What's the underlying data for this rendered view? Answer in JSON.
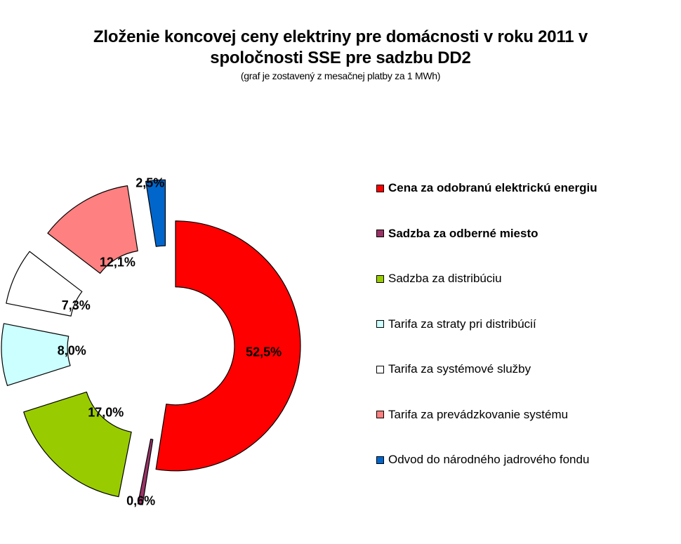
{
  "chart_data": {
    "type": "pie",
    "variant": "exploded-doughnut",
    "title": "Zloženie koncovej ceny elektriny pre domácnosti v roku 2011 v spoločnosti SSE pre sadzbu DD2",
    "subtitle": "(graf je zostavený z mesačnej platby za 1 MWh)",
    "legend_position": "right",
    "slices": [
      {
        "label": "Cena za odobranú  elektrickú energiu",
        "value": 52.5,
        "value_label": "52,5%",
        "color": "#ff0000",
        "legend_bold": true
      },
      {
        "label": "Sadzba za odberné miesto",
        "value": 0.6,
        "value_label": "0,6%",
        "color": "#993366",
        "legend_bold": true
      },
      {
        "label": "Sadzba za distribúciu",
        "value": 17.0,
        "value_label": "17,0%",
        "color": "#99cc00",
        "legend_bold": false
      },
      {
        "label": "Tarifa za straty  pri distribúcií",
        "value": 8.0,
        "value_label": "8,0%",
        "color": "#ccffff",
        "legend_bold": false
      },
      {
        "label": "Tarifa za systémové služby",
        "value": 7.3,
        "value_label": "7,3%",
        "color": "#ffffff",
        "legend_bold": false
      },
      {
        "label": "Tarifa za prevádzkovanie systému",
        "value": 12.1,
        "value_label": "12,1%",
        "color": "#ff8080",
        "legend_bold": false
      },
      {
        "label": "Odvod do národného jadrového fondu",
        "value": 2.5,
        "value_label": "2,5%",
        "color": "#0066cc",
        "legend_bold": false
      }
    ]
  }
}
